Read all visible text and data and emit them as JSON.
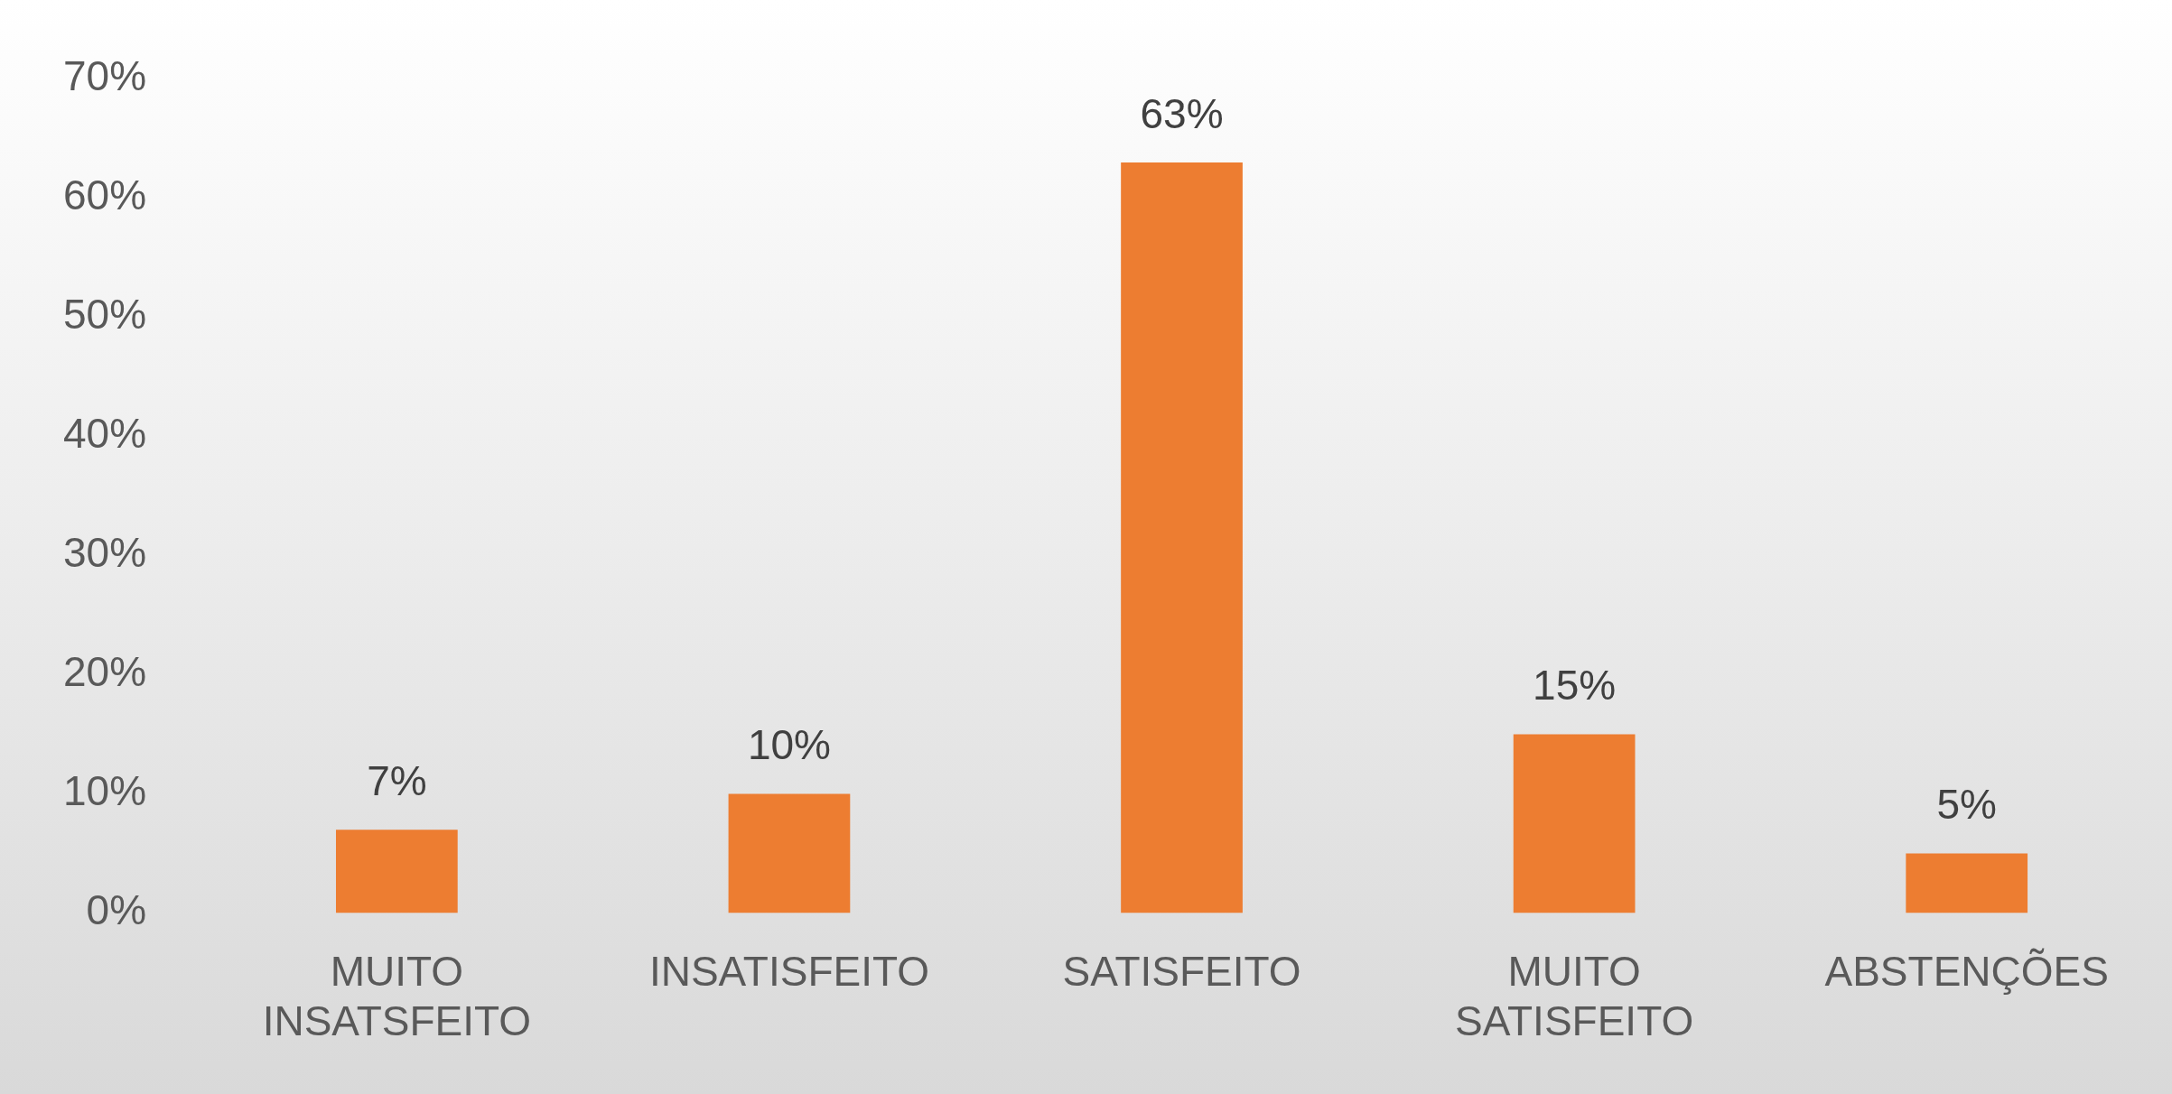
{
  "chart_data": {
    "type": "bar",
    "categories": [
      "MUITO INSATSFEITO",
      "INSATISFEITO",
      "SATISFEITO",
      "MUITO SATISFEITO",
      "ABSTENÇÕES"
    ],
    "values": [
      7,
      10,
      63,
      15,
      5
    ],
    "color": "#ed7d31",
    "value_labels": [
      "7%",
      "10%",
      "63%",
      "15%",
      "5%"
    ],
    "ylim": [
      0,
      70
    ],
    "yticks": [
      {
        "value": 0,
        "label": "0%"
      },
      {
        "value": 10,
        "label": "10%"
      },
      {
        "value": 20,
        "label": "20%"
      },
      {
        "value": 30,
        "label": "30%"
      },
      {
        "value": 40,
        "label": "40%"
      },
      {
        "value": 50,
        "label": "50%"
      },
      {
        "value": 60,
        "label": "60%"
      },
      {
        "value": 70,
        "label": "70%"
      }
    ],
    "grid": false,
    "legend": false
  }
}
